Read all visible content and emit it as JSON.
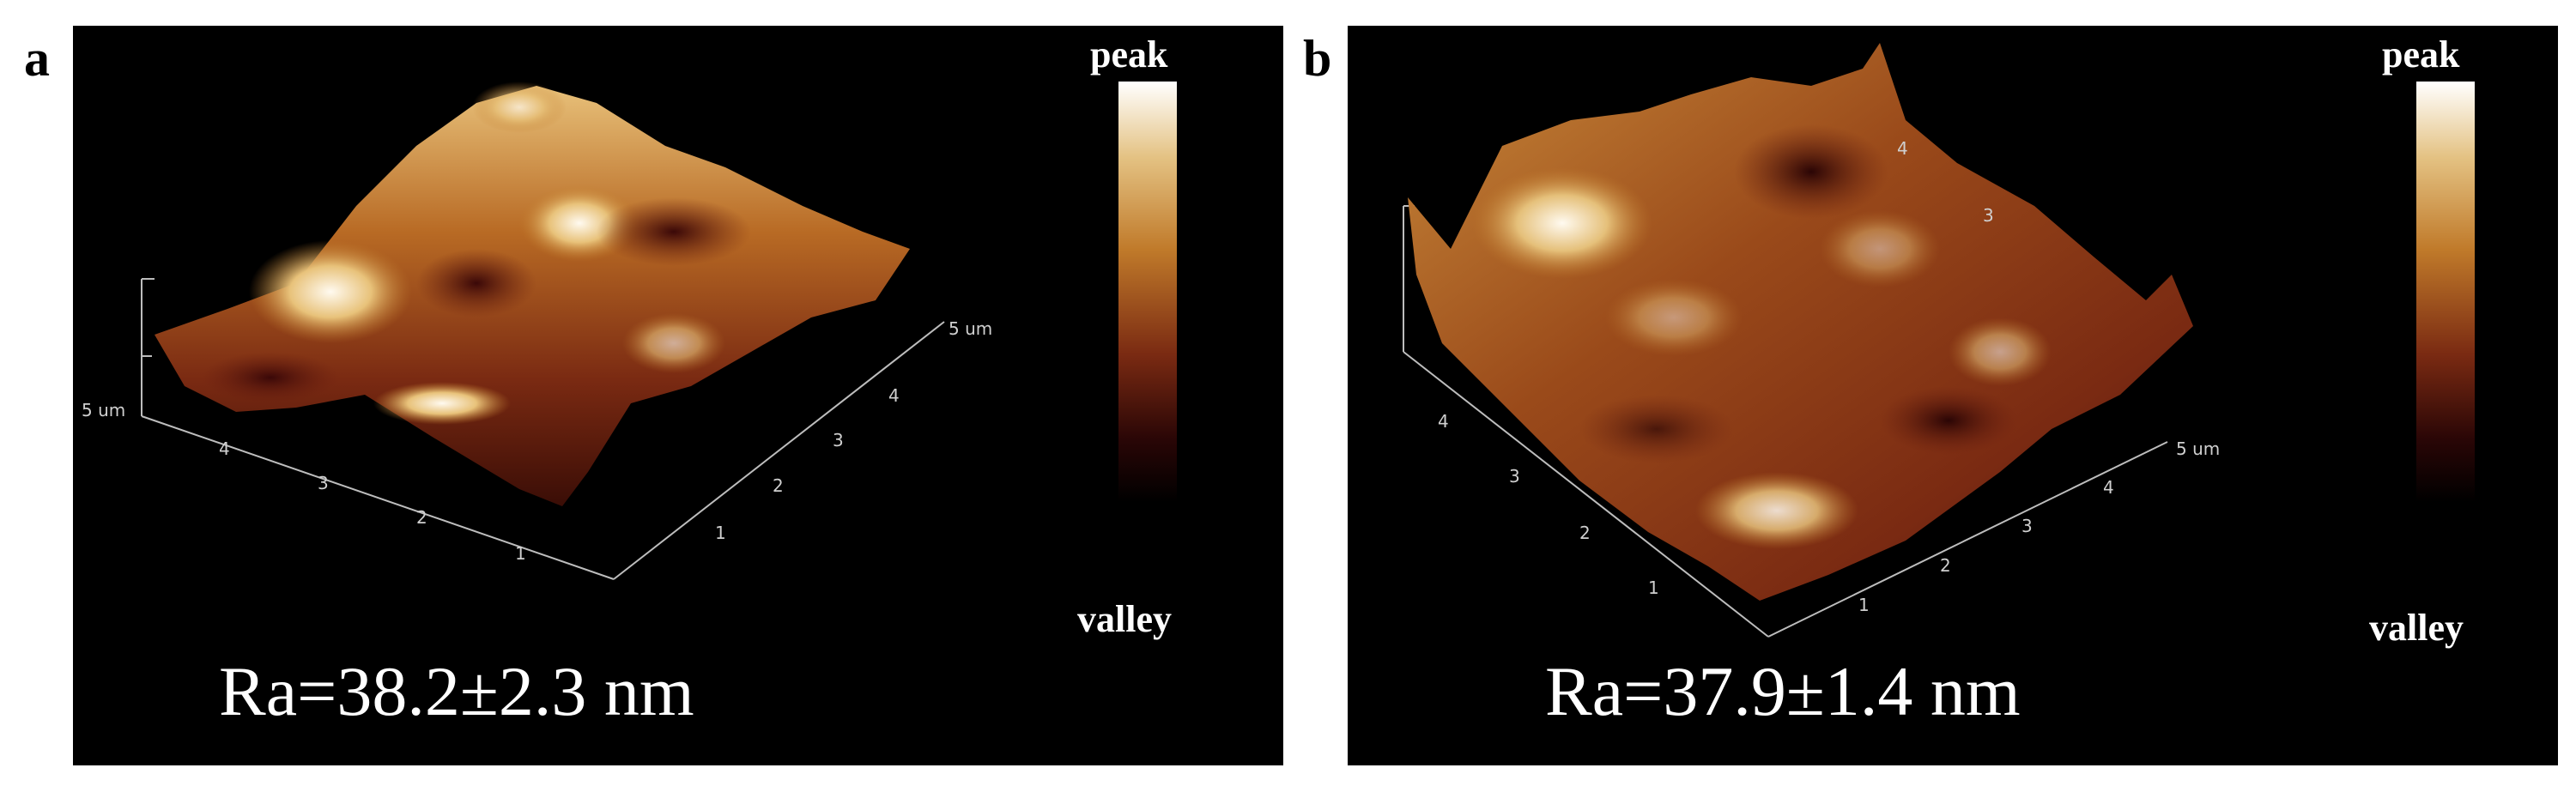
{
  "panels": [
    {
      "letter": "a",
      "scale_top": "peak",
      "scale_bottom": "valley",
      "roughness": "Ra=38.2±2.3 nm",
      "axis_unit_left": "5 um",
      "axis_unit_right": "5 um",
      "ticks_front": [
        "4",
        "3",
        "2",
        "1"
      ],
      "ticks_side": [
        "4",
        "3",
        "2",
        "1"
      ]
    },
    {
      "letter": "b",
      "scale_top": "peak",
      "scale_bottom": "valley",
      "roughness": "Ra=37.9±1.4 nm",
      "axis_unit_right": "5 um",
      "ticks_left": [
        "4",
        "3",
        "2",
        "1"
      ],
      "ticks_right": [
        "4",
        "3",
        "2",
        "1"
      ],
      "ticks_back": [
        "4",
        "3"
      ]
    }
  ],
  "colors": {
    "background": "#000000",
    "scale_gradient": [
      "#ffffff",
      "#d9a441",
      "#8b3a10",
      "#3a0a08",
      "#000000"
    ]
  }
}
